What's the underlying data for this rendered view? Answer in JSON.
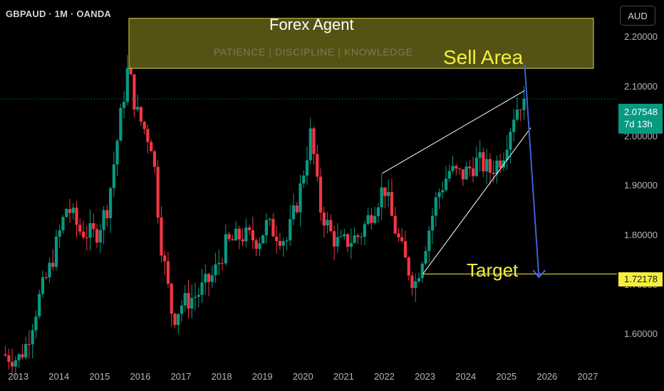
{
  "header": {
    "symbol": "GBPAUD · 1M · OANDA",
    "currency_button": "AUD"
  },
  "price_scale": {
    "ticks": [
      "2.20000",
      "2.10000",
      "2.00000",
      "1.90000",
      "1.80000",
      "1.70000",
      "1.60000"
    ],
    "tick_values": [
      2.2,
      2.1,
      2.0,
      1.9,
      1.8,
      1.7,
      1.6
    ]
  },
  "time_scale": {
    "ticks": [
      "2013",
      "2014",
      "2015",
      "2016",
      "2017",
      "2018",
      "2019",
      "2020",
      "2021",
      "2022",
      "2023",
      "2024",
      "2025",
      "2026",
      "2027"
    ],
    "tick_values": [
      2013,
      2014,
      2015,
      2016,
      2017,
      2018,
      2019,
      2020,
      2021,
      2022,
      2023,
      2024,
      2025,
      2026,
      2027
    ]
  },
  "last_price": {
    "value": "2.07548",
    "countdown": "7d 13h"
  },
  "target_price": {
    "value": "1.72178"
  },
  "annotations": {
    "title": "Forex Agent",
    "subtitle": "PATIENCE  |  DISCIPLINE  |  KNOWLEDGE",
    "sell_area": "Sell Area",
    "target": "Target"
  },
  "colors": {
    "up": "#089981",
    "down": "#f23645",
    "background": "#000000",
    "sell_zone": "#6b6a1a",
    "target_line": "#f5ef3b",
    "arrow": "#3d62d6",
    "wedge": "#ffffff"
  },
  "chart_data": {
    "type": "candlestick",
    "symbol": "GBPAUD",
    "interval": "1M",
    "ylim": [
      1.54,
      2.275
    ],
    "xlim": [
      2012.55,
      2027.65
    ],
    "close_anchors": [
      [
        2012.6,
        1.56
      ],
      [
        2013.0,
        1.55
      ],
      [
        2013.2,
        1.58
      ],
      [
        2013.5,
        1.67
      ],
      [
        2013.8,
        1.74
      ],
      [
        2014.2,
        1.86
      ],
      [
        2014.5,
        1.81
      ],
      [
        2014.9,
        1.8
      ],
      [
        2015.2,
        1.86
      ],
      [
        2015.5,
        2.03
      ],
      [
        2015.7,
        2.14
      ],
      [
        2015.9,
        2.05
      ],
      [
        2016.3,
        1.98
      ],
      [
        2016.5,
        1.79
      ],
      [
        2016.8,
        1.63
      ],
      [
        2017.0,
        1.66
      ],
      [
        2017.4,
        1.68
      ],
      [
        2017.8,
        1.72
      ],
      [
        2018.1,
        1.78
      ],
      [
        2018.5,
        1.8
      ],
      [
        2018.9,
        1.79
      ],
      [
        2019.1,
        1.82
      ],
      [
        2019.6,
        1.79
      ],
      [
        2019.9,
        1.88
      ],
      [
        2020.2,
        2.01
      ],
      [
        2020.4,
        1.86
      ],
      [
        2020.7,
        1.8
      ],
      [
        2020.9,
        1.78
      ],
      [
        2021.4,
        1.8
      ],
      [
        2021.7,
        1.85
      ],
      [
        2022.0,
        1.9
      ],
      [
        2022.2,
        1.83
      ],
      [
        2022.5,
        1.75
      ],
      [
        2022.75,
        1.7
      ],
      [
        2023.0,
        1.78
      ],
      [
        2023.3,
        1.88
      ],
      [
        2023.6,
        1.93
      ],
      [
        2023.9,
        1.92
      ],
      [
        2024.3,
        1.95
      ],
      [
        2024.6,
        1.93
      ],
      [
        2024.9,
        1.96
      ],
      [
        2025.2,
        2.05
      ],
      [
        2025.4,
        2.07548
      ]
    ],
    "last_close": 2.07548,
    "sell_area": [
      2.137,
      2.238
    ],
    "target": 1.72178,
    "wedge_upper": [
      [
        2021.95,
        1.925
      ],
      [
        2025.45,
        2.092
      ]
    ],
    "wedge_lower": [
      [
        2022.95,
        1.722
      ],
      [
        2025.6,
        2.017
      ]
    ],
    "arrow": [
      [
        2025.45,
        2.145
      ],
      [
        2025.8,
        1.715
      ]
    ]
  }
}
